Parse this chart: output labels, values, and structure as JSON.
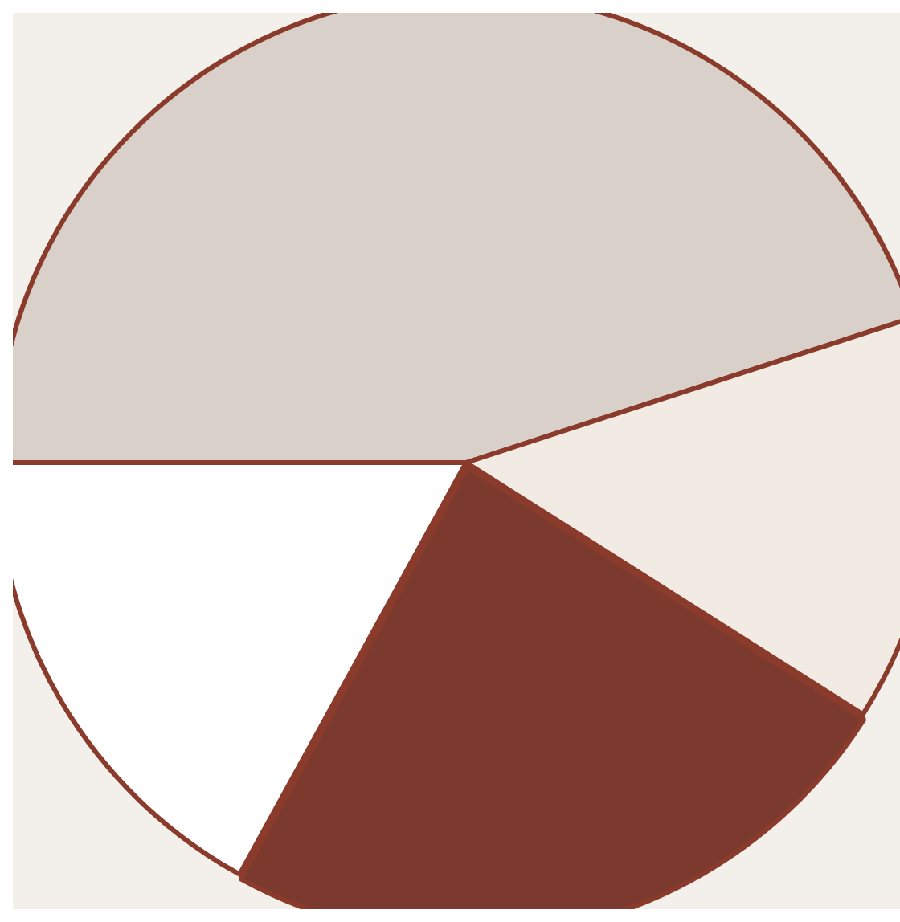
{
  "chart_data": {
    "type": "pie",
    "categories": [
      null,
      null,
      null,
      null
    ],
    "values": [
      45,
      14,
      24,
      17
    ],
    "colors": [
      "#d9d1c9",
      "#f1ebe4",
      "#7b3a2d",
      "#ffffff"
    ],
    "legend": false
  }
}
